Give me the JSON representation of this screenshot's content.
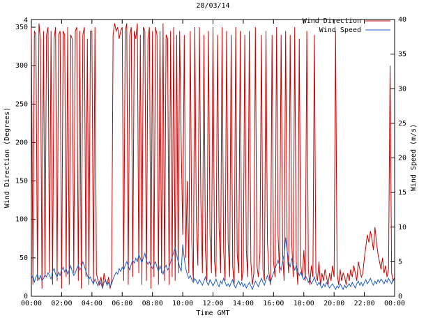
{
  "title": "28/03/14",
  "axes": {
    "x_label": "Time GMT",
    "y_left_label": "Wind Direction (Degrees)",
    "y_right_label": "Wind Speed (m/s)",
    "x_tick_labels": [
      "00:00",
      "02:00",
      "04:00",
      "06:00",
      "08:00",
      "10:00",
      "12:00",
      "14:00",
      "16:00",
      "18:00",
      "20:00",
      "22:00",
      "00:00"
    ],
    "y_left": {
      "range": [
        0,
        360
      ],
      "tick_values": [
        0,
        50,
        100,
        150,
        200,
        250,
        300,
        350
      ],
      "tick_labels": [
        "0",
        "50",
        "100",
        "150",
        "200",
        "250",
        "300",
        "350"
      ],
      "top_label": "4"
    },
    "y_right": {
      "range": [
        0,
        40
      ],
      "tick_values": [
        0,
        5,
        10,
        15,
        20,
        25,
        30,
        35,
        40
      ],
      "tick_labels": [
        "0",
        "5",
        "10",
        "15",
        "20",
        "25",
        "30",
        "35",
        "40"
      ]
    }
  },
  "legend": {
    "position": "top-right-inside",
    "entries": [
      {
        "label": "Wind Direction",
        "color": "#cc0000"
      },
      {
        "label": "Wind Speed",
        "color": "#2060c0"
      }
    ]
  },
  "chart_data": {
    "type": "line",
    "title": "28/03/14",
    "xlabel": "Time GMT",
    "ylabel": "Wind Direction (Degrees)",
    "y2label": "Wind Speed (m/s)",
    "x_start": "00:00",
    "x_end": "24:00",
    "x_step_minutes": 6,
    "ylim_left": [
      0,
      360
    ],
    "ylim_right": [
      0,
      40
    ],
    "grid": false,
    "legend_position": "top-right-inside",
    "series": [
      {
        "name": "Wind Direction",
        "axis": "left",
        "unit": "degrees",
        "color": "#cc0000",
        "values": [
          350,
          15,
          345,
          340,
          20,
          355,
          335,
          10,
          345,
          25,
          340,
          350,
          30,
          345,
          15,
          335,
          350,
          20,
          340,
          345,
          10,
          345,
          340,
          25,
          350,
          15,
          340,
          335,
          30,
          345,
          350,
          20,
          345,
          10,
          340,
          350,
          25,
          335,
          15,
          345,
          345,
          15,
          350,
          30,
          20,
          15,
          25,
          10,
          30,
          20,
          15,
          25,
          10,
          20,
          340,
          355,
          345,
          350,
          335,
          345,
          350,
          20,
          345,
          355,
          15,
          340,
          350,
          25,
          345,
          335,
          355,
          30,
          340,
          15,
          350,
          345,
          20,
          335,
          350,
          10,
          345,
          25,
          350,
          340,
          15,
          345,
          30,
          355,
          20,
          340,
          335,
          15,
          345,
          25,
          350,
          20,
          340,
          30,
          345,
          200,
          80,
          340,
          50,
          150,
          30,
          345,
          70,
          20,
          350,
          100,
          40,
          350,
          120,
          30,
          340,
          60,
          20,
          345,
          80,
          30,
          350,
          45,
          25,
          340,
          90,
          30,
          350,
          60,
          20,
          345,
          70,
          25,
          340,
          40,
          15,
          350,
          55,
          30,
          345,
          20,
          35,
          340,
          60,
          25,
          345,
          45,
          15,
          30,
          350,
          40,
          25,
          55,
          340,
          35,
          20,
          345,
          70,
          30,
          15,
          340,
          45,
          25,
          350,
          80,
          30,
          340,
          55,
          20,
          345,
          60,
          30,
          340,
          70,
          25,
          350,
          45,
          15,
          335,
          40,
          25,
          60,
          20,
          345,
          35,
          15,
          40,
          25,
          340,
          30,
          20,
          45,
          15,
          30,
          20,
          35,
          25,
          15,
          30,
          20,
          40,
          25,
          345,
          30,
          15,
          35,
          20,
          30,
          25,
          15,
          30,
          20,
          35,
          25,
          40,
          30,
          20,
          45,
          35,
          25,
          30,
          50,
          65,
          80,
          70,
          85,
          75,
          60,
          90,
          70,
          55,
          45,
          35,
          50,
          30,
          40,
          25,
          35,
          300,
          30,
          20,
          25
        ]
      },
      {
        "name": "Wind Speed",
        "axis": "right",
        "unit": "m/s",
        "color": "#2060c0",
        "values": [
          2.5,
          3,
          2,
          2.8,
          3.2,
          2.4,
          3,
          2.2,
          2.6,
          3.1,
          2.8,
          3.4,
          3,
          2.5,
          3.6,
          4,
          3.2,
          2.8,
          3.5,
          3,
          3.8,
          4.2,
          3.5,
          4,
          3.2,
          3.8,
          4.4,
          3.6,
          3,
          3.4,
          4,
          4.5,
          3.8,
          4.2,
          5,
          4.4,
          3.6,
          3,
          2.5,
          2.8,
          2.2,
          1.8,
          2.5,
          2,
          1.5,
          2.2,
          1.8,
          1.2,
          2,
          2.4,
          1.6,
          2,
          1.4,
          1.8,
          2.5,
          3,
          3.5,
          3.2,
          4,
          3.6,
          4.2,
          3.8,
          4.5,
          5,
          4.4,
          3.8,
          4.6,
          5.2,
          4.8,
          5.5,
          5,
          6,
          5.5,
          4.8,
          5.6,
          6.2,
          5.2,
          4.6,
          5,
          4.4,
          4,
          4.6,
          5,
          4.2,
          3.6,
          4.4,
          3.8,
          3.2,
          4,
          4.5,
          3.8,
          4.2,
          5,
          5.6,
          6.4,
          7,
          6,
          5,
          4.2,
          3.6,
          7.5,
          5.5,
          4,
          3.2,
          2.6,
          3,
          2.4,
          2,
          2.6,
          2.2,
          1.8,
          2.4,
          2,
          1.6,
          2.2,
          2.8,
          2,
          1.6,
          2.4,
          2,
          1.5,
          2,
          2.5,
          1.8,
          1.4,
          2.2,
          1.8,
          2.6,
          2,
          1.5,
          1.8,
          1.4,
          2,
          2.4,
          1.6,
          1.2,
          1.8,
          2.2,
          1.6,
          2,
          1.4,
          1.8,
          1.2,
          1.6,
          2,
          1.5,
          1,
          1.6,
          2.2,
          1.8,
          1.4,
          2,
          2.6,
          2,
          1.6,
          2.4,
          3,
          2.4,
          2,
          2.8,
          3.4,
          4,
          4.6,
          5.2,
          4.4,
          3.8,
          5,
          6,
          8.5,
          6.5,
          5,
          4.2,
          5.5,
          4.6,
          3.8,
          4.4,
          3.6,
          3,
          3.5,
          2.8,
          2.4,
          3,
          2.6,
          2,
          2.5,
          1.8,
          2.2,
          2.8,
          2,
          1.6,
          2,
          1.6,
          1.2,
          1.8,
          1.4,
          2,
          1.6,
          1.2,
          1.5,
          1.8,
          1.4,
          1,
          1.5,
          1.2,
          1.8,
          1.4,
          1,
          1.6,
          1.2,
          1.5,
          1.8,
          1.4,
          2,
          1.6,
          1.2,
          1.8,
          2.2,
          1.6,
          2,
          1.5,
          2,
          2.4,
          1.8,
          2.2,
          2.6,
          2,
          1.6,
          2.2,
          1.8,
          2.4,
          2,
          2.5,
          2.2,
          1.8,
          2.4,
          2,
          2.6,
          2.2,
          1.8,
          2.5,
          2.2
        ]
      }
    ]
  }
}
